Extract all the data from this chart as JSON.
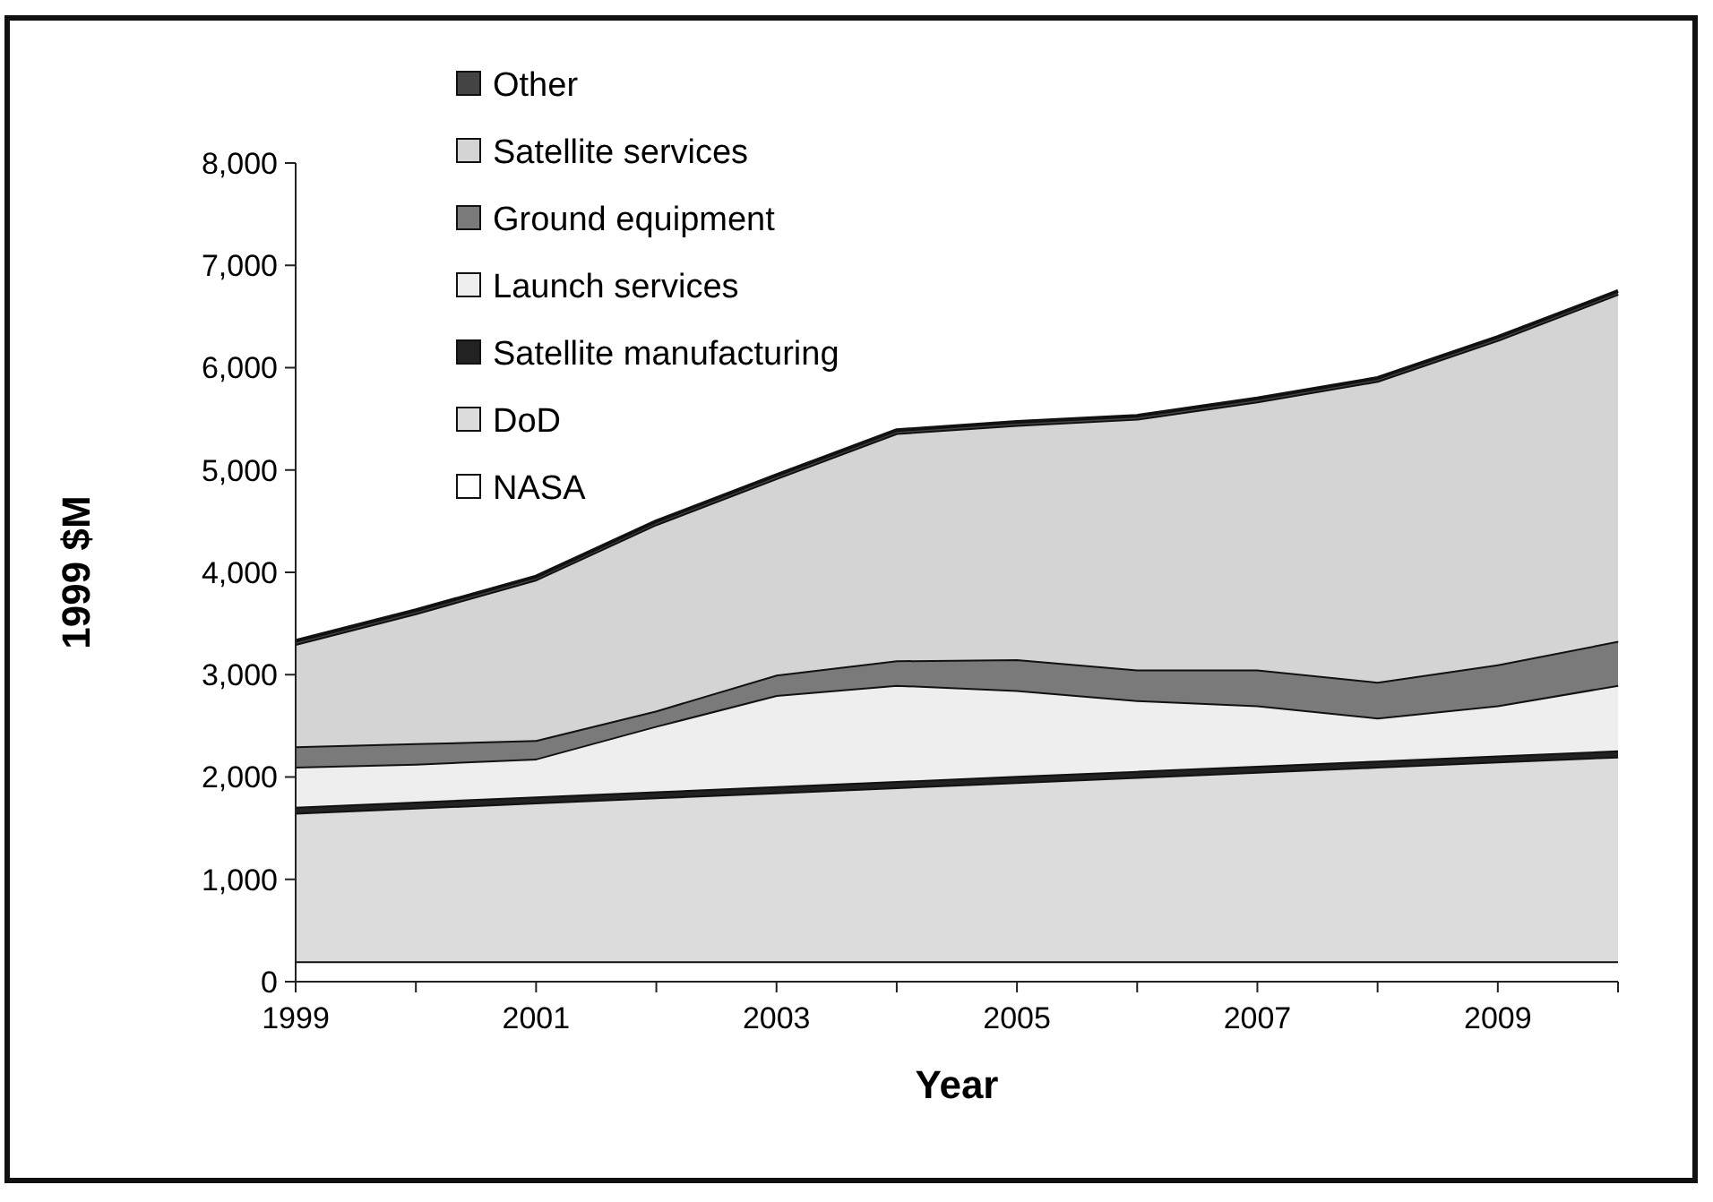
{
  "chart_data": {
    "type": "area",
    "stacked": true,
    "xlabel": "Year",
    "ylabel": "1999 $M",
    "x": [
      1999,
      2000,
      2001,
      2002,
      2003,
      2004,
      2005,
      2006,
      2007,
      2008,
      2009,
      2010
    ],
    "xlim": [
      1999,
      2010
    ],
    "xticks": [
      1999,
      {
        "value": 2000,
        "label": null
      },
      2001,
      {
        "value": 2002,
        "label": null
      },
      2003,
      {
        "value": 2004,
        "label": null
      },
      2005,
      {
        "value": 2006,
        "label": null
      },
      2007,
      {
        "value": 2008,
        "label": null
      },
      2009,
      {
        "value": 2010,
        "label": null
      }
    ],
    "ylim": [
      0,
      8000
    ],
    "yticks": [
      0,
      {
        "value": 1000,
        "label": "1,000"
      },
      {
        "value": 2000,
        "label": "2,000"
      },
      {
        "value": 3000,
        "label": "3,000"
      },
      {
        "value": 4000,
        "label": "4,000"
      },
      {
        "value": 5000,
        "label": "5,000"
      },
      {
        "value": 6000,
        "label": "6,000"
      },
      {
        "value": 7000,
        "label": "7,000"
      },
      {
        "value": 8000,
        "label": "8,000"
      }
    ],
    "legend": "top left",
    "series": [
      {
        "name": "NASA",
        "color": "#ffffff",
        "values": [
          200,
          200,
          200,
          200,
          200,
          200,
          200,
          200,
          200,
          200,
          200,
          200
        ]
      },
      {
        "name": "DoD",
        "color": "#dcdcdc",
        "values": [
          1450,
          1500,
          1550,
          1600,
          1650,
          1700,
          1750,
          1800,
          1850,
          1900,
          1950,
          2000
        ]
      },
      {
        "name": "Satellite manufacturing",
        "color": "#222222",
        "values": [
          60,
          60,
          60,
          60,
          60,
          60,
          60,
          60,
          60,
          60,
          60,
          60
        ]
      },
      {
        "name": "Launch services",
        "color": "#eeeeee",
        "values": [
          390,
          370,
          370,
          640,
          890,
          940,
          840,
          690,
          590,
          420,
          490,
          640
        ]
      },
      {
        "name": "Ground equipment",
        "color": "#7a7a7a",
        "values": [
          200,
          200,
          180,
          150,
          200,
          240,
          300,
          300,
          350,
          350,
          400,
          430
        ]
      },
      {
        "name": "Satellite services",
        "color": "#d4d4d4",
        "values": [
          1000,
          1270,
          1570,
          1820,
          1920,
          2220,
          2290,
          2450,
          2620,
          2940,
          3170,
          3390
        ]
      },
      {
        "name": "Other",
        "color": "#444444",
        "values": [
          30,
          30,
          30,
          30,
          30,
          30,
          30,
          30,
          30,
          30,
          30,
          30
        ]
      }
    ]
  }
}
